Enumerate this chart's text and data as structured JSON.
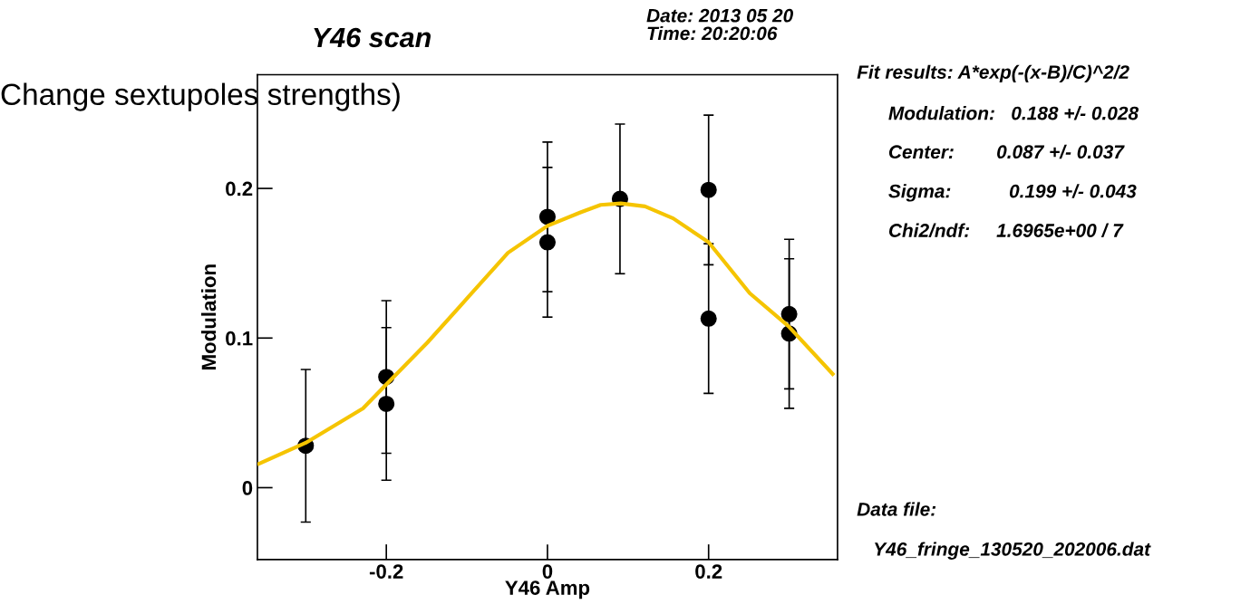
{
  "chart_data": {
    "type": "scatter",
    "title": "Y46 scan",
    "xlabel": "Y46 Amp",
    "ylabel": "Modulation",
    "xlim": [
      -0.36,
      0.36
    ],
    "ylim": [
      -0.048,
      0.276
    ],
    "xticks": [
      {
        "value": -0.2,
        "label": "-0.2"
      },
      0,
      0.2
    ],
    "yticks": [
      0,
      0.1,
      0.2
    ],
    "series": [
      {
        "marker": "circle",
        "color": "#000000",
        "x": [
          -0.3,
          -0.2,
          -0.2,
          0,
          0,
          0.09,
          0.2,
          0.2,
          0.3,
          0.3
        ],
        "values": [
          0.028,
          0.074,
          0.056,
          0.181,
          0.164,
          0.193,
          0.199,
          0.113,
          0.116,
          0.103
        ],
        "errors": [
          0.051,
          0.051,
          0.051,
          0.05,
          0.05,
          0.05,
          0.05,
          0.05,
          0.05,
          0.05
        ]
      },
      {
        "type": "line",
        "color": "#f5c400",
        "x": [
          -0.358,
          -0.3,
          -0.229,
          -0.2,
          -0.149,
          -0.099,
          -0.049,
          0,
          0.041,
          0.066,
          0.091,
          0.121,
          0.156,
          0.2,
          0.251,
          0.299,
          0.354
        ],
        "values": [
          0.016,
          0.03,
          0.053,
          0.069,
          0.097,
          0.127,
          0.157,
          0.175,
          0.184,
          0.189,
          0.19,
          0.188,
          0.18,
          0.164,
          0.13,
          0.108,
          0.076
        ]
      }
    ],
    "annotations": [
      "Change sextupoles strengths)",
      "Date: 2013 05 20",
      "Time: 20:20:06",
      "Fit results: A*exp(-(x-B)/C)^2/2",
      "Modulation:   0.188 +/- 0.028",
      "Center:        0.087 +/- 0.037",
      "Sigma:           0.199 +/- 0.043",
      "Chi2/ndf:     1.6965e+00 / 7",
      "Data file:",
      "Y46_fringe_130520_202006.dat"
    ]
  }
}
